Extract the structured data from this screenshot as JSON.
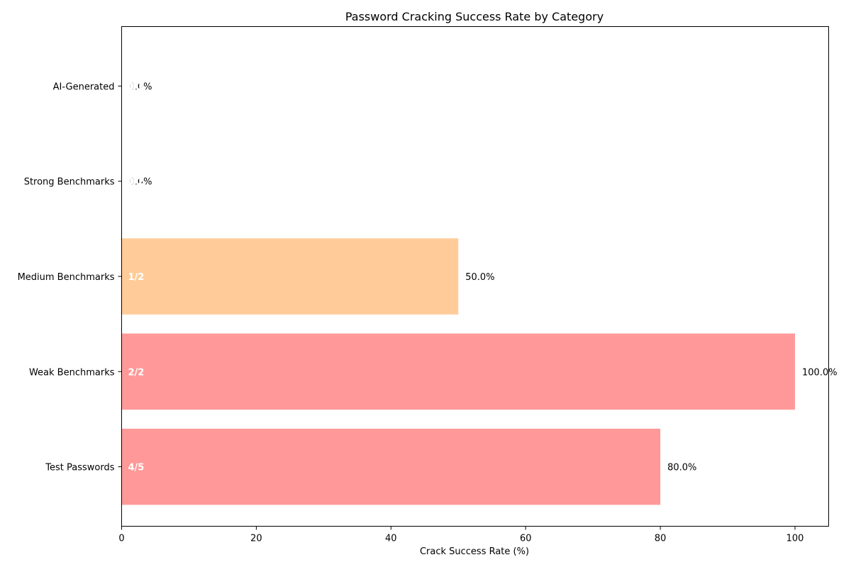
{
  "chart_data": {
    "type": "bar",
    "orientation": "horizontal",
    "title": "Password Cracking Success Rate by Category",
    "xlabel": "Crack Success Rate (%)",
    "ylabel": "",
    "xlim": [
      0,
      105
    ],
    "x_ticks": [
      0,
      20,
      40,
      60,
      80,
      100
    ],
    "x_tick_labels": [
      "0",
      "20",
      "40",
      "60",
      "80",
      "100"
    ],
    "grid": false,
    "categories": [
      "AI-Generated",
      "Strong Benchmarks",
      "Medium Benchmarks",
      "Weak Benchmarks",
      "Test Passwords"
    ],
    "values": [
      0.0,
      0.0,
      50.0,
      100.0,
      80.0
    ],
    "value_labels": [
      "0.0%",
      "0.0%",
      "50.0%",
      "100.0%",
      "80.0%"
    ],
    "count_labels": [
      "0/3",
      "0/2",
      "1/2",
      "2/2",
      "4/5"
    ],
    "colors": [
      "#99ff99",
      "#99ff99",
      "#ffcc99",
      "#ff9999",
      "#ff9999"
    ]
  }
}
